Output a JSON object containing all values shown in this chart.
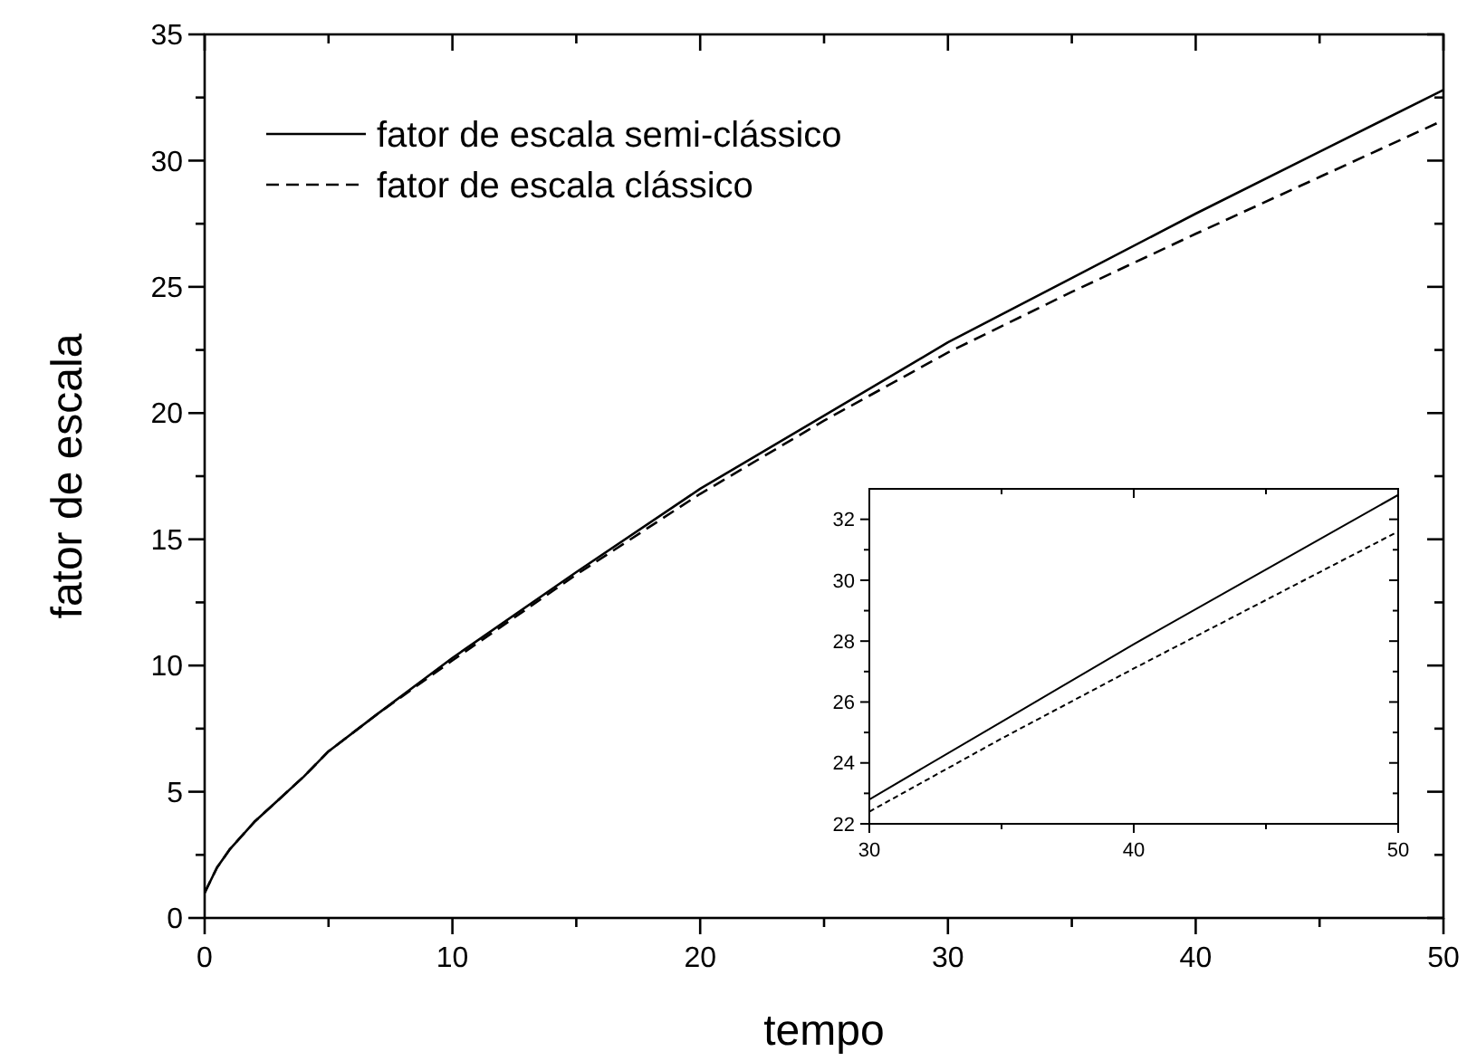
{
  "chart_data": [
    {
      "type": "line",
      "xlabel": "tempo",
      "ylabel": "fator de escala",
      "xlim": [
        0,
        50
      ],
      "ylim": [
        0,
        35
      ],
      "xticks": [
        0,
        {
          "value": 5,
          "label": null
        },
        10,
        {
          "value": 15,
          "label": null
        },
        20,
        {
          "value": 25,
          "label": null
        },
        30,
        {
          "value": 35,
          "label": null
        },
        40,
        {
          "value": 45,
          "label": null
        },
        50
      ],
      "yticks": [
        0,
        {
          "value": 2.5,
          "label": null
        },
        5,
        {
          "value": 7.5,
          "label": null
        },
        10,
        {
          "value": 12.5,
          "label": null
        },
        15,
        {
          "value": 17.5,
          "label": null
        },
        20,
        {
          "value": 22.5,
          "label": null
        },
        25,
        {
          "value": 27.5,
          "label": null
        },
        30,
        {
          "value": 32.5,
          "label": null
        },
        35
      ],
      "x": [
        0,
        0.5,
        1,
        2,
        3,
        4,
        5,
        7,
        10,
        15,
        20,
        25,
        30,
        35,
        40,
        45,
        50
      ],
      "series": [
        {
          "name": "fator de escala semi-clássico",
          "color": "#000000",
          "line_style": "solid",
          "values": [
            1,
            2.0,
            2.7,
            3.8,
            4.7,
            5.6,
            6.6,
            8.1,
            10.3,
            13.7,
            17.0,
            19.9,
            22.8,
            25.35,
            27.9,
            30.35,
            32.8
          ]
        },
        {
          "name": "fator de escala clássico",
          "color": "#000000",
          "line_style": "dashed",
          "values": [
            1,
            2.0,
            2.7,
            3.8,
            4.7,
            5.6,
            6.6,
            8.1,
            10.2,
            13.6,
            16.8,
            19.7,
            22.4,
            24.8,
            27.1,
            29.35,
            31.6
          ]
        }
      ],
      "legend": "top left",
      "grid": false
    },
    {
      "type": "line",
      "xlim": [
        30,
        50
      ],
      "ylim": [
        22,
        33
      ],
      "xticks": [
        30,
        {
          "value": 35,
          "label": null
        },
        40,
        {
          "value": 45,
          "label": null
        },
        50
      ],
      "yticks": [
        22,
        {
          "value": 23,
          "label": null
        },
        24,
        {
          "value": 25,
          "label": null
        },
        26,
        {
          "value": 27,
          "label": null
        },
        28,
        {
          "value": 29,
          "label": null
        },
        30,
        {
          "value": 31,
          "label": null
        },
        32
      ],
      "x": [
        30,
        35,
        40,
        45,
        50
      ],
      "series": [
        {
          "color": "#000000",
          "line_style": "solid",
          "values": [
            22.8,
            25.35,
            27.9,
            30.35,
            32.8
          ]
        },
        {
          "color": "#000000",
          "line_style": "dotted",
          "values": [
            22.4,
            24.8,
            27.1,
            29.35,
            31.6
          ]
        }
      ],
      "grid": false
    }
  ]
}
